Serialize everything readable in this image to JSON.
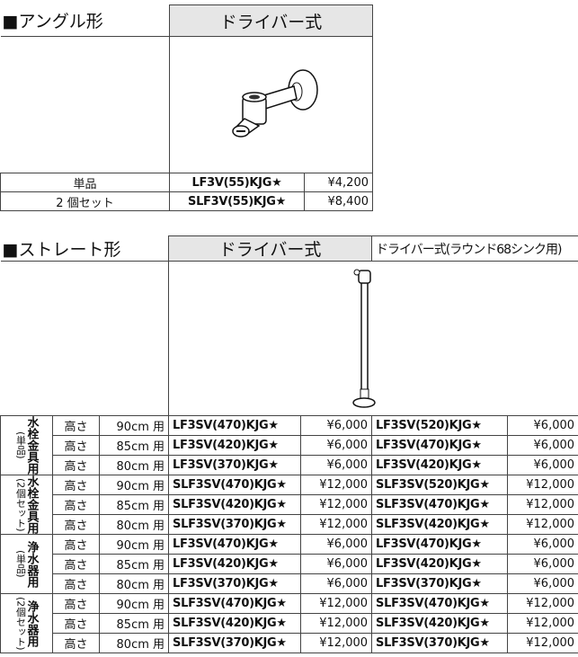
{
  "angle": {
    "title": "■アングル形",
    "header": "ドライバー式",
    "rows": [
      {
        "label": "単品",
        "model": "LF3V(55)KJG★",
        "price": "¥4,200"
      },
      {
        "label": "2 個セット",
        "model": "SLF3V(55)KJG★",
        "price": "¥8,400"
      }
    ]
  },
  "straight": {
    "title": "■ストレート形",
    "headers": [
      "ドライバー式",
      "ドライバー式(ラウンド68シンク用)"
    ],
    "groups": [
      {
        "label_main": "水栓金具用",
        "label_sub": "(単品)",
        "rows": [
          {
            "h": "高さ",
            "height": "90cm 用",
            "model1": "LF3SV(470)KJG★",
            "price1": "¥6,000",
            "model2": "LF3SV(520)KJG★",
            "price2": "¥6,000"
          },
          {
            "h": "高さ",
            "height": "85cm 用",
            "model1": "LF3SV(420)KJG★",
            "price1": "¥6,000",
            "model2": "LF3SV(470)KJG★",
            "price2": "¥6,000"
          },
          {
            "h": "高さ",
            "height": "80cm 用",
            "model1": "LF3SV(370)KJG★",
            "price1": "¥6,000",
            "model2": "LF3SV(420)KJG★",
            "price2": "¥6,000"
          }
        ]
      },
      {
        "label_main": "水栓金具用",
        "label_sub": "(2個セット)",
        "rows": [
          {
            "h": "高さ",
            "height": "90cm 用",
            "model1": "SLF3SV(470)KJG★",
            "price1": "¥12,000",
            "model2": "SLF3SV(520)KJG★",
            "price2": "¥12,000"
          },
          {
            "h": "高さ",
            "height": "85cm 用",
            "model1": "SLF3SV(420)KJG★",
            "price1": "¥12,000",
            "model2": "SLF3SV(470)KJG★",
            "price2": "¥12,000"
          },
          {
            "h": "高さ",
            "height": "80cm 用",
            "model1": "SLF3SV(370)KJG★",
            "price1": "¥12,000",
            "model2": "SLF3SV(420)KJG★",
            "price2": "¥12,000"
          }
        ]
      },
      {
        "label_main": "浄水器用",
        "label_sub": "(単品)",
        "rows": [
          {
            "h": "高さ",
            "height": "90cm 用",
            "model1": "LF3SV(470)KJG★",
            "price1": "¥6,000",
            "model2": "LF3SV(470)KJG★",
            "price2": "¥6,000"
          },
          {
            "h": "高さ",
            "height": "85cm 用",
            "model1": "LF3SV(420)KJG★",
            "price1": "¥6,000",
            "model2": "LF3SV(420)KJG★",
            "price2": "¥6,000"
          },
          {
            "h": "高さ",
            "height": "80cm 用",
            "model1": "LF3SV(370)KJG★",
            "price1": "¥6,000",
            "model2": "LF3SV(370)KJG★",
            "price2": "¥6,000"
          }
        ]
      },
      {
        "label_main": "浄水器用",
        "label_sub": "(2個セット)",
        "rows": [
          {
            "h": "高さ",
            "height": "90cm 用",
            "model1": "SLF3SV(470)KJG★",
            "price1": "¥12,000",
            "model2": "SLF3SV(470)KJG★",
            "price2": "¥12,000"
          },
          {
            "h": "高さ",
            "height": "85cm 用",
            "model1": "SLF3SV(420)KJG★",
            "price1": "¥12,000",
            "model2": "SLF3SV(420)KJG★",
            "price2": "¥12,000"
          },
          {
            "h": "高さ",
            "height": "80cm 用",
            "model1": "SLF3SV(370)KJG★",
            "price1": "¥12,000",
            "model2": "SLF3SV(370)KJG★",
            "price2": "¥12,000"
          }
        ]
      }
    ]
  }
}
